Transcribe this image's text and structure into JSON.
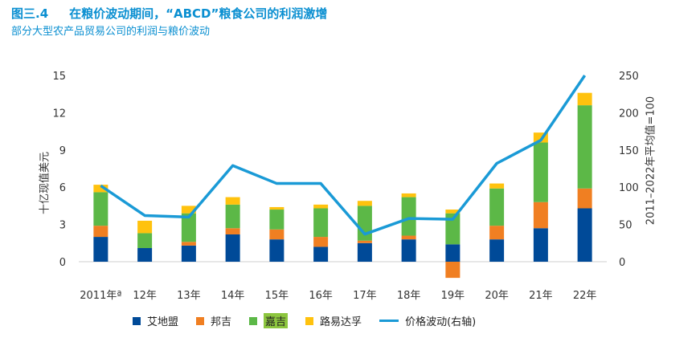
{
  "header": {
    "figure_number": "图三.4",
    "title": "在粮价波动期间，“ABCD”粮食公司的利润激增",
    "subtitle": "部分大型农产品贸易公司的利润与粮价波动"
  },
  "chart_data": {
    "type": "bar",
    "stacked": true,
    "categories": [
      "2011年ª",
      "12年",
      "13年",
      "14年",
      "15年",
      "16年",
      "17年",
      "18年",
      "19年",
      "20年",
      "21年",
      "22年"
    ],
    "series": [
      {
        "name": "艾地盟",
        "color": "#004a98",
        "values": [
          2.0,
          1.1,
          1.3,
          2.2,
          1.8,
          1.2,
          1.5,
          1.8,
          1.4,
          1.8,
          2.7,
          4.3
        ]
      },
      {
        "name": "邦吉",
        "color": "#f07f22",
        "values": [
          0.9,
          0.0,
          0.3,
          0.5,
          0.8,
          0.8,
          0.2,
          0.3,
          -1.3,
          1.1,
          2.1,
          1.6
        ]
      },
      {
        "name": "嘉吉",
        "color": "#5cb847",
        "values": [
          2.7,
          1.2,
          2.3,
          1.9,
          1.6,
          2.3,
          2.8,
          3.1,
          2.5,
          3.0,
          4.8,
          6.7
        ]
      },
      {
        "name": "路易达孚",
        "color": "#ffc20e",
        "values": [
          0.6,
          1.0,
          0.6,
          0.6,
          0.2,
          0.3,
          0.4,
          0.3,
          0.3,
          0.4,
          0.8,
          1.0
        ]
      }
    ],
    "line_series": {
      "name": "价格波动(右轴)",
      "color": "#1a9ad6",
      "axis": "right",
      "values": [
        102,
        62,
        60,
        129,
        105,
        105,
        37,
        58,
        57,
        132,
        163,
        250
      ]
    },
    "ylabel": "十亿现值美元",
    "ylim": [
      0,
      15
    ],
    "yticks": [
      0,
      3,
      6,
      9,
      12,
      15
    ],
    "y2label": "2011–2022年平均值=100",
    "y2lim": [
      0,
      250
    ],
    "y2ticks": [
      0,
      50,
      100,
      150,
      200,
      250
    ]
  },
  "legend": {
    "items": [
      {
        "label": "艾地盟",
        "color": "#004a98"
      },
      {
        "label": "邦吉",
        "color": "#f07f22"
      },
      {
        "label": "嘉吉",
        "color": "#5cb847"
      },
      {
        "label": "路易达孚",
        "color": "#ffc20e"
      }
    ],
    "line_label": "价格波动(右轴)",
    "line_color": "#1a9ad6"
  }
}
